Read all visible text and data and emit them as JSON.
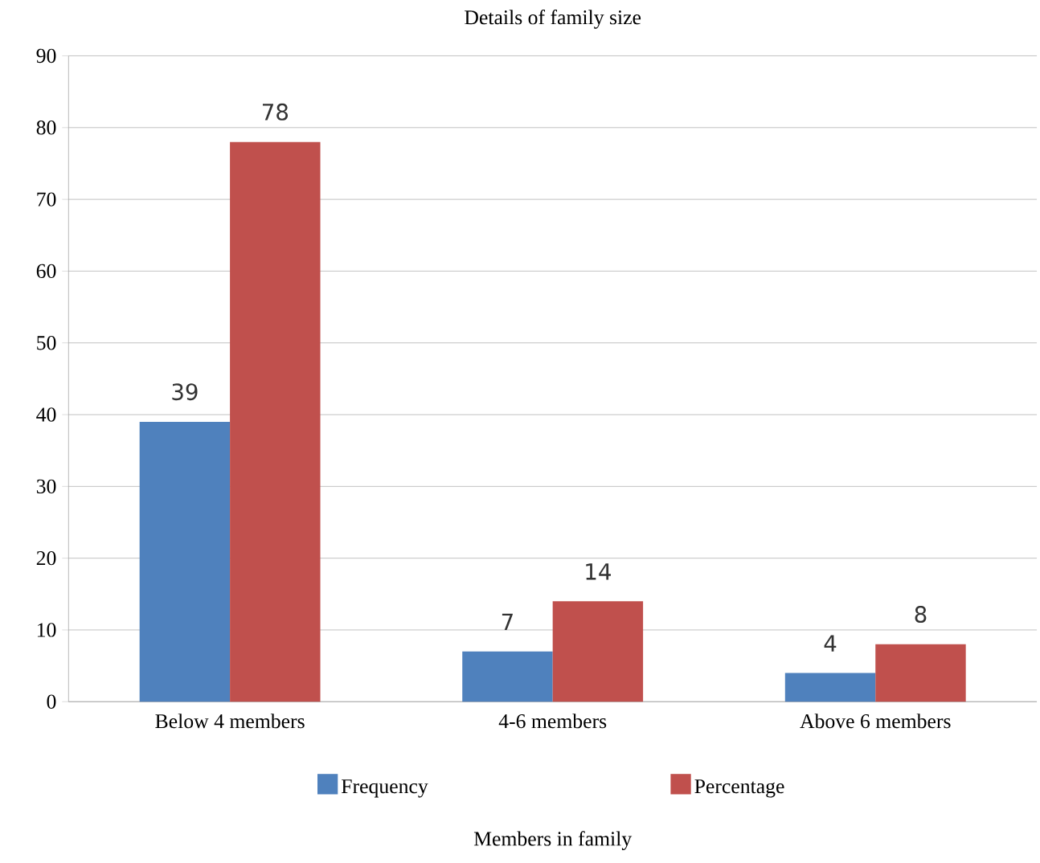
{
  "chart_data": {
    "type": "bar",
    "title": "Details of family size",
    "xlabel": "Members in family",
    "categories": [
      "Below 4 members",
      "4-6 members",
      "Above 6 members"
    ],
    "series": [
      {
        "name": "Frequency",
        "color": "#4f81bd",
        "values": [
          39,
          7,
          4
        ]
      },
      {
        "name": "Percentage",
        "color": "#c0504d",
        "values": [
          78,
          14,
          8
        ]
      }
    ],
    "ylim": [
      0,
      90
    ],
    "yticks": [
      0,
      10,
      20,
      30,
      40,
      50,
      60,
      70,
      80,
      90
    ],
    "grid": "y",
    "legend": "bottom",
    "data_labels": true
  }
}
